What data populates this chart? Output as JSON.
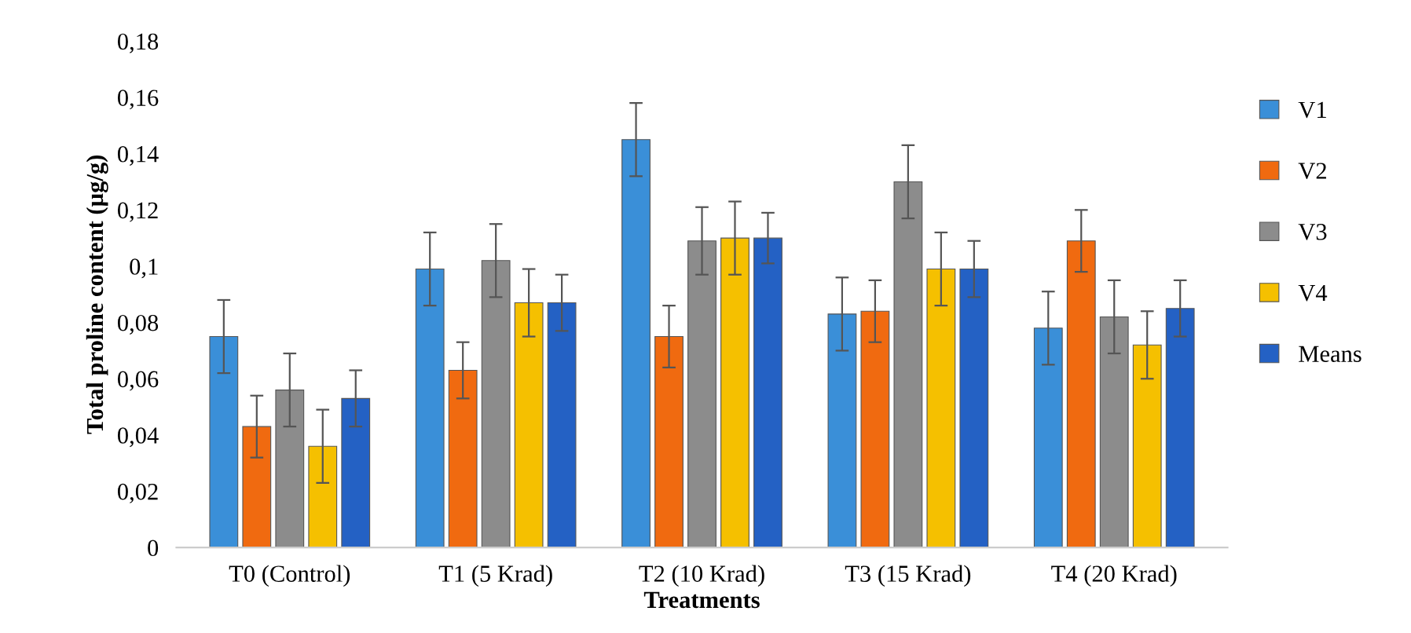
{
  "chart_data": {
    "type": "bar",
    "xlabel": "Treatments",
    "ylabel": "Total proline content (µg/g)",
    "categories": [
      "T0 (Control)",
      "T1 (5 Krad)",
      "T2 (10 Krad)",
      "T3 (15 Krad)",
      "T4 (20 Krad)"
    ],
    "series": [
      {
        "name": "V1",
        "color": "#3a8fd8",
        "values": [
          0.075,
          0.099,
          0.145,
          0.083,
          0.078
        ],
        "errors": [
          0.013,
          0.013,
          0.013,
          0.013,
          0.013
        ]
      },
      {
        "name": "V2",
        "color": "#f06a10",
        "values": [
          0.043,
          0.063,
          0.075,
          0.084,
          0.109
        ],
        "errors": [
          0.011,
          0.01,
          0.011,
          0.011,
          0.011
        ]
      },
      {
        "name": "V3",
        "color": "#8c8c8c",
        "values": [
          0.056,
          0.102,
          0.109,
          0.13,
          0.082
        ],
        "errors": [
          0.013,
          0.013,
          0.012,
          0.013,
          0.013
        ]
      },
      {
        "name": "V4",
        "color": "#f5c000",
        "values": [
          0.036,
          0.087,
          0.11,
          0.099,
          0.072
        ],
        "errors": [
          0.013,
          0.012,
          0.013,
          0.013,
          0.012
        ]
      },
      {
        "name": "Means",
        "color": "#2461c4",
        "values": [
          0.053,
          0.087,
          0.11,
          0.099,
          0.085
        ],
        "errors": [
          0.01,
          0.01,
          0.009,
          0.01,
          0.01
        ]
      }
    ],
    "ylim": [
      0,
      0.18
    ],
    "yticks": [
      0,
      {
        "value": 0.02,
        "label": "0,02"
      },
      {
        "value": 0.04,
        "label": "0,04"
      },
      {
        "value": 0.06,
        "label": "0,06"
      },
      {
        "value": 0.08,
        "label": "0,08"
      },
      {
        "value": 0.1,
        "label": "0,1"
      },
      {
        "value": 0.12,
        "label": "0,12"
      },
      {
        "value": 0.14,
        "label": "0,14"
      },
      {
        "value": 0.16,
        "label": "0,16"
      },
      {
        "value": 0.18,
        "label": "0,18"
      }
    ],
    "grid": false,
    "legend": "right"
  }
}
